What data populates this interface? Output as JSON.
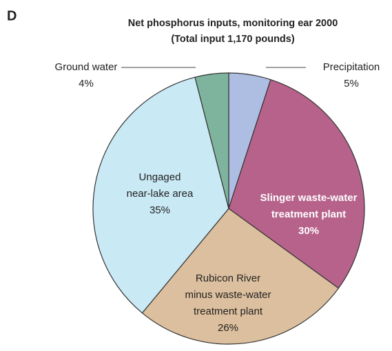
{
  "chart_data": {
    "type": "pie",
    "panel_label": "D",
    "title": [
      "Net phosphorus inputs, monitoring   ear 2000",
      "(Total input    1,170 pounds)"
    ],
    "categories": [
      [
        "Precipitation"
      ],
      [
        "Slinger waste-water",
        "treatment plant"
      ],
      [
        "Rubicon River",
        "minus waste-water",
        "treatment plant"
      ],
      [
        "Ungaged",
        "near-lake area"
      ],
      [
        "Ground water"
      ]
    ],
    "values": [
      5,
      30,
      26,
      35,
      4
    ],
    "value_labels": [
      "5%",
      "30%",
      "26%",
      "35%",
      "4%"
    ],
    "colors": [
      "#aebde2",
      "#b7628b",
      "#dcbf9e",
      "#c9e9f5",
      "#7eb49d"
    ]
  }
}
